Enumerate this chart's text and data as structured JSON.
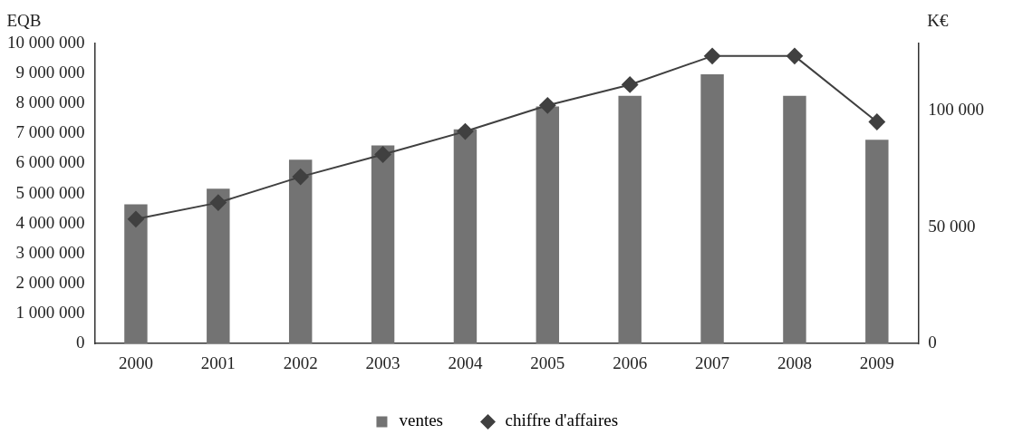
{
  "chart_data": {
    "type": "bar",
    "categories": [
      "2000",
      "2001",
      "2002",
      "2003",
      "2004",
      "2005",
      "2006",
      "2007",
      "2008",
      "2009"
    ],
    "series": [
      {
        "name": "ventes",
        "color": "#737373",
        "values": [
          4640000,
          5160000,
          6130000,
          6600000,
          7140000,
          7900000,
          8260000,
          8970000,
          8260000,
          6790000
        ]
      },
      {
        "name": "chiffre d'affaires",
        "type": "line",
        "axis": "y2",
        "color": "#404040",
        "values": [
          53500,
          60600,
          71700,
          81300,
          91200,
          102400,
          111300,
          123600,
          123600,
          95300
        ]
      }
    ],
    "ylabel": "EQB",
    "y2label": "K€",
    "ylim": [
      0,
      10000000
    ],
    "yticks": [
      {
        "value": 0,
        "label": "0"
      },
      {
        "value": 1000000,
        "label": "1 000 000"
      },
      {
        "value": 2000000,
        "label": "2 000 000"
      },
      {
        "value": 3000000,
        "label": "3 000 000"
      },
      {
        "value": 4000000,
        "label": "4 000 000"
      },
      {
        "value": 5000000,
        "label": "5 000 000"
      },
      {
        "value": 6000000,
        "label": "6 000 000"
      },
      {
        "value": 7000000,
        "label": "7 000 000"
      },
      {
        "value": 8000000,
        "label": "8 000 000"
      },
      {
        "value": 9000000,
        "label": "9 000 000"
      },
      {
        "value": 10000000,
        "label": "10 000 000"
      }
    ],
    "y2lim": [
      0,
      129000
    ],
    "y2ticks": [
      {
        "value": 0,
        "label": "0"
      },
      {
        "value": 50000,
        "label": "50 000"
      },
      {
        "value": 100000,
        "label": "100 000"
      }
    ],
    "marker": "diamond",
    "grid": false,
    "legend": "bottom"
  }
}
